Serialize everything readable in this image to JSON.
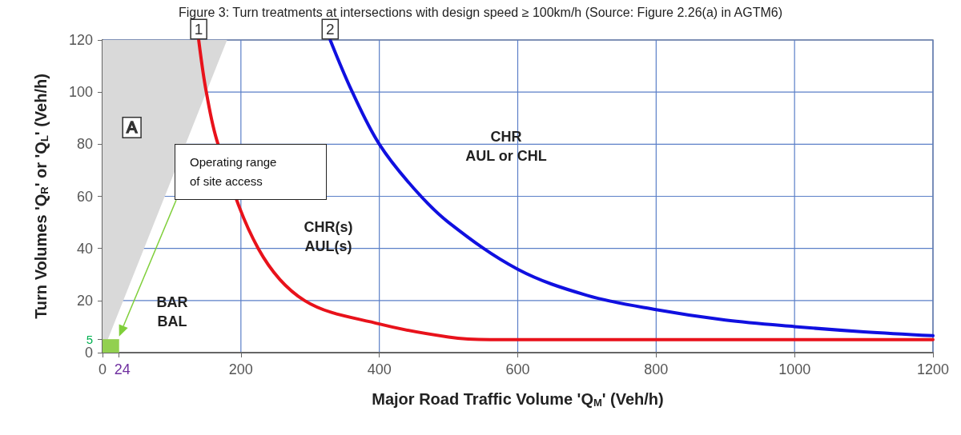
{
  "chart_data": {
    "type": "line",
    "title": "Figure 3: Turn treatments at intersections with design speed ≥ 100km/h (Source: Figure 2.26(a) in AGTM6)",
    "xlabel": "Major Road Traffic Volume 'Q$_{M}$' (Veh/h)",
    "ylabel": "Turn Volumes 'Q$_{R}$' or 'Q$_{L}$' (Veh/h)",
    "xlim": [
      0,
      1200
    ],
    "xticks": [
      0,
      24,
      200,
      400,
      600,
      800,
      1000,
      1200
    ],
    "ylim": [
      0,
      120
    ],
    "yticks": [
      0,
      5,
      20,
      40,
      60,
      80,
      100,
      120
    ],
    "grid": true,
    "legend": false,
    "series": [
      {
        "name": "A",
        "type": "area",
        "color": "#d9d9d9",
        "x": [
          0,
          180
        ],
        "values": [
          0,
          120
        ]
      },
      {
        "type": "area",
        "color": "#92d050",
        "x": [
          0,
          24
        ],
        "values": [
          5,
          5
        ]
      },
      {
        "name": "1",
        "color": "#e8121b",
        "x": [
          139,
          150,
          167,
          225,
          292,
          400,
          500,
          560,
          600,
          800,
          1000,
          1200
        ],
        "values": [
          120,
          100,
          80,
          40,
          20,
          11,
          6,
          5,
          5,
          5,
          5,
          5
        ]
      },
      {
        "name": "2",
        "color": "#1010e0",
        "x": [
          329,
          361,
          400,
          450,
          500,
          600,
          700,
          800,
          900,
          1000,
          1100,
          1200
        ],
        "values": [
          120,
          100,
          80,
          63,
          50,
          32,
          22,
          16.5,
          12.5,
          10,
          8,
          6.5
        ]
      }
    ],
    "annotations": [
      "BAR\nBAL",
      "CHR(s)\nAUL(s)",
      "CHR\nAUL or CHL",
      "Operating range\nof site access"
    ]
  }
}
